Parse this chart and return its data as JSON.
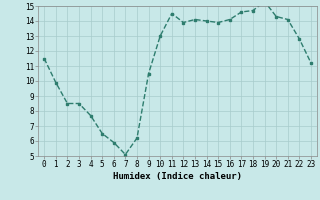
{
  "x": [
    0,
    1,
    2,
    3,
    4,
    5,
    6,
    7,
    8,
    9,
    10,
    11,
    12,
    13,
    14,
    15,
    16,
    17,
    18,
    19,
    20,
    21,
    22,
    23
  ],
  "y": [
    11.5,
    9.9,
    8.5,
    8.5,
    7.7,
    6.5,
    5.9,
    5.1,
    6.2,
    10.5,
    13.0,
    14.5,
    13.9,
    14.1,
    14.0,
    13.9,
    14.1,
    14.6,
    14.7,
    15.3,
    14.3,
    14.1,
    12.8,
    11.2
  ],
  "line_color": "#2e7d6e",
  "marker": "s",
  "marker_size": 2.0,
  "line_width": 1.0,
  "bg_color": "#c8e8e8",
  "grid_color": "#a8cccc",
  "xlabel": "Humidex (Indice chaleur)",
  "xlim": [
    -0.5,
    23.5
  ],
  "ylim": [
    5,
    15
  ],
  "yticks": [
    5,
    6,
    7,
    8,
    9,
    10,
    11,
    12,
    13,
    14,
    15
  ],
  "xticks": [
    0,
    1,
    2,
    3,
    4,
    5,
    6,
    7,
    8,
    9,
    10,
    11,
    12,
    13,
    14,
    15,
    16,
    17,
    18,
    19,
    20,
    21,
    22,
    23
  ],
  "tick_fontsize": 5.5,
  "xlabel_fontsize": 6.5
}
